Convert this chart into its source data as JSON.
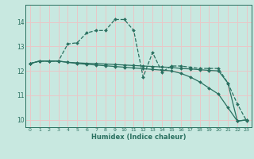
{
  "xlabel": "Humidex (Indice chaleur)",
  "xlim": [
    -0.5,
    23.5
  ],
  "ylim": [
    9.7,
    14.7
  ],
  "xticks": [
    0,
    1,
    2,
    3,
    4,
    5,
    6,
    7,
    8,
    9,
    10,
    11,
    12,
    13,
    14,
    15,
    16,
    17,
    18,
    19,
    20,
    21,
    22,
    23
  ],
  "yticks": [
    10,
    11,
    12,
    13,
    14
  ],
  "background_color": "#c8e8e0",
  "grid_color": "#e8c8c8",
  "line_color": "#2a7060",
  "series": [
    {
      "x": [
        0,
        1,
        2,
        3,
        4,
        5,
        6,
        7,
        8,
        9,
        10,
        11,
        12,
        13,
        14,
        15,
        16,
        17,
        18,
        19,
        20,
        21,
        22,
        23
      ],
      "y": [
        12.3,
        12.4,
        12.4,
        12.4,
        13.1,
        13.15,
        13.55,
        13.65,
        13.65,
        14.1,
        14.1,
        13.65,
        11.75,
        12.75,
        11.95,
        12.2,
        12.2,
        12.15,
        12.1,
        12.1,
        12.1,
        11.5,
        10.65,
        9.95
      ],
      "marker": "D",
      "linestyle": "--"
    },
    {
      "x": [
        0,
        1,
        2,
        3,
        4,
        5,
        6,
        7,
        8,
        9,
        10,
        11,
        12,
        13,
        14,
        15,
        16,
        17,
        18,
        19,
        20,
        21,
        22,
        23
      ],
      "y": [
        12.3,
        12.4,
        12.4,
        12.4,
        12.35,
        12.33,
        12.31,
        12.3,
        12.28,
        12.26,
        12.24,
        12.22,
        12.2,
        12.18,
        12.16,
        12.14,
        12.1,
        12.08,
        12.05,
        12.02,
        12.0,
        11.5,
        9.95,
        10.0
      ],
      "marker": "D",
      "linestyle": "-"
    },
    {
      "x": [
        0,
        1,
        2,
        3,
        4,
        5,
        6,
        7,
        8,
        9,
        10,
        11,
        12,
        13,
        14,
        15,
        16,
        17,
        18,
        19,
        20,
        21,
        22,
        23
      ],
      "y": [
        12.3,
        12.4,
        12.4,
        12.4,
        12.35,
        12.3,
        12.27,
        12.24,
        12.21,
        12.18,
        12.15,
        12.12,
        12.09,
        12.06,
        12.03,
        12.0,
        11.9,
        11.75,
        11.55,
        11.3,
        11.05,
        10.5,
        9.95,
        10.0
      ],
      "marker": "D",
      "linestyle": "-"
    }
  ]
}
